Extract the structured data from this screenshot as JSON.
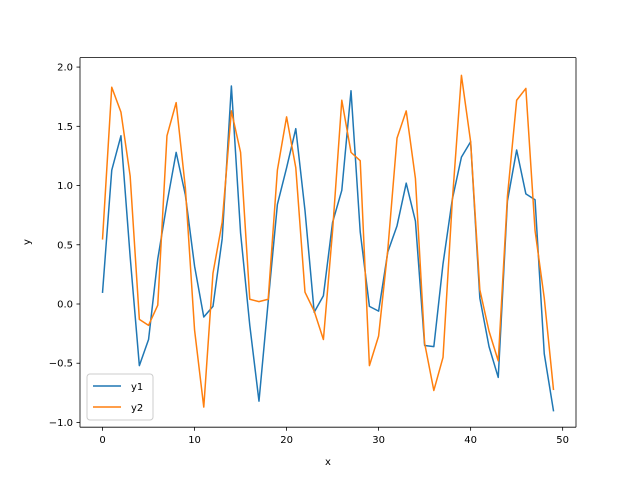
{
  "chart_data": {
    "type": "line",
    "title": "",
    "xlabel": "x",
    "ylabel": "y",
    "xlim": [
      -2.45,
      51.45
    ],
    "ylim": [
      -1.04,
      2.08
    ],
    "xticks": [
      0,
      10,
      20,
      30,
      40,
      50
    ],
    "xtick_labels": [
      "0",
      "10",
      "20",
      "30",
      "40",
      "50"
    ],
    "yticks": [
      -1.0,
      -0.5,
      0.0,
      0.5,
      1.0,
      1.5,
      2.0
    ],
    "ytick_labels": [
      "−1.0",
      "−0.5",
      "0.0",
      "0.5",
      "1.0",
      "1.5",
      "2.0"
    ],
    "grid": false,
    "legend_position": "lower-left",
    "x": [
      0,
      1,
      2,
      3,
      4,
      5,
      6,
      7,
      8,
      9,
      10,
      11,
      12,
      13,
      14,
      15,
      16,
      17,
      18,
      19,
      20,
      21,
      22,
      23,
      24,
      25,
      26,
      27,
      28,
      29,
      30,
      31,
      32,
      33,
      34,
      35,
      36,
      37,
      38,
      39,
      40,
      41,
      42,
      43,
      44,
      45,
      46,
      47,
      48,
      49
    ],
    "series": [
      {
        "name": "y1",
        "color": "#1f77b4",
        "values": [
          0.1,
          1.13,
          1.42,
          0.4,
          -0.52,
          -0.3,
          0.38,
          0.85,
          1.28,
          0.92,
          0.32,
          -0.11,
          -0.02,
          0.55,
          1.84,
          0.6,
          -0.18,
          -0.82,
          0.02,
          0.84,
          1.15,
          1.48,
          0.79,
          -0.07,
          0.07,
          0.69,
          0.96,
          1.8,
          0.61,
          -0.02,
          -0.06,
          0.44,
          0.66,
          1.02,
          0.7,
          -0.35,
          -0.36,
          0.34,
          0.88,
          1.24,
          1.37,
          0.05,
          -0.36,
          -0.62,
          0.87,
          1.3,
          0.93,
          0.88,
          -0.42,
          -0.9
        ]
      },
      {
        "name": "y2",
        "color": "#ff7f0e",
        "values": [
          0.55,
          1.83,
          1.62,
          1.08,
          -0.13,
          -0.18,
          -0.01,
          1.42,
          1.7,
          0.98,
          -0.22,
          -0.87,
          0.26,
          0.69,
          1.63,
          1.28,
          0.04,
          0.02,
          0.04,
          1.13,
          1.58,
          1.15,
          0.1,
          -0.06,
          -0.3,
          0.62,
          1.72,
          1.28,
          1.21,
          -0.52,
          -0.27,
          0.46,
          1.4,
          1.63,
          1.06,
          -0.33,
          -0.73,
          -0.45,
          0.86,
          1.93,
          1.37,
          0.12,
          -0.23,
          -0.48,
          0.91,
          1.72,
          1.82,
          0.62,
          0.05,
          -0.72
        ]
      }
    ]
  }
}
